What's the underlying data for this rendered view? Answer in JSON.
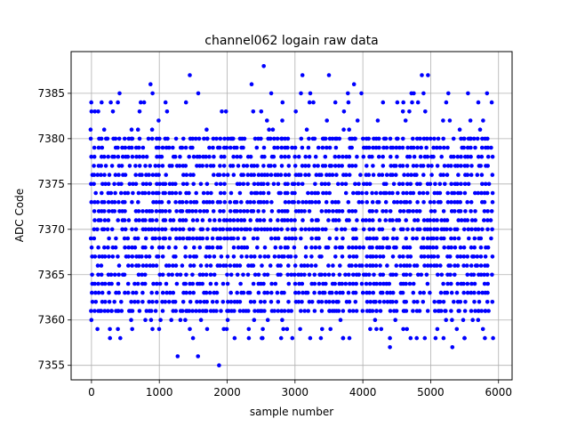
{
  "chart_data": {
    "type": "scatter",
    "title": "channel062 logain raw data",
    "xlabel": "sample number",
    "ylabel": "ADC Code",
    "xlim": [
      -300,
      6200
    ],
    "ylim": [
      7353.4,
      7389.6
    ],
    "x_ticks": [
      0,
      1000,
      2000,
      3000,
      4000,
      5000,
      6000
    ],
    "x_tick_labels": [
      "0",
      "1000",
      "2000",
      "3000",
      "4000",
      "5000",
      "6000"
    ],
    "y_ticks": [
      7355,
      7360,
      7365,
      7370,
      7375,
      7380,
      7385
    ],
    "y_tick_labels": [
      "7355",
      "7360",
      "7365",
      "7370",
      "7375",
      "7380",
      "7385"
    ],
    "grid": true,
    "marker_color": "#0000ff",
    "dense_band": {
      "x_start": 0,
      "x_end": 5900,
      "x_step": 50,
      "y_min": 7361,
      "y_max": 7380
    },
    "sparse_band_low": {
      "x_start": 0,
      "x_end": 5900,
      "x_step": 100,
      "y_min": 7358,
      "y_max": 7361
    },
    "sparse_band_high": {
      "x_start": 0,
      "x_end": 5900,
      "x_step": 100,
      "y_min": 7380,
      "y_max": 7385
    },
    "outliers": [
      [
        0,
        7383
      ],
      [
        50,
        7383
      ],
      [
        100,
        7383
      ],
      [
        150,
        7384
      ],
      [
        870,
        7386
      ],
      [
        900,
        7385
      ],
      [
        1450,
        7387
      ],
      [
        2360,
        7386
      ],
      [
        2540,
        7388
      ],
      [
        2650,
        7385
      ],
      [
        3110,
        7387
      ],
      [
        3500,
        7387
      ],
      [
        3780,
        7385
      ],
      [
        3870,
        7386
      ],
      [
        4750,
        7385
      ],
      [
        4870,
        7387
      ],
      [
        4960,
        7387
      ],
      [
        5260,
        7385
      ],
      [
        5550,
        7385
      ],
      [
        5830,
        7385
      ],
      [
        5900,
        7384
      ],
      [
        1270,
        7356
      ],
      [
        1570,
        7356
      ],
      [
        1880,
        7355
      ],
      [
        4400,
        7357
      ],
      [
        5320,
        7357
      ],
      [
        2510,
        7358
      ],
      [
        2960,
        7358
      ],
      [
        3710,
        7358
      ],
      [
        5500,
        7358
      ],
      [
        600,
        7359
      ],
      [
        1450,
        7359
      ],
      [
        1950,
        7359
      ],
      [
        3400,
        7359
      ],
      [
        4200,
        7359
      ],
      [
        4650,
        7359
      ],
      [
        5770,
        7359
      ]
    ]
  }
}
